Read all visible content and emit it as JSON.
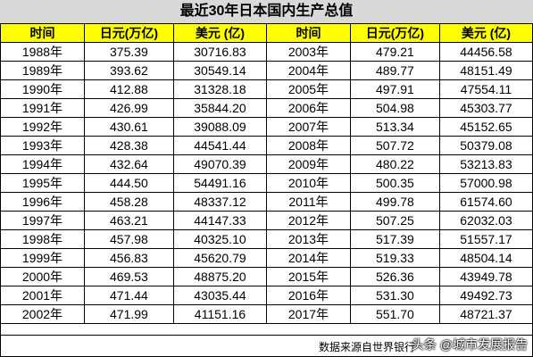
{
  "title": "最近30年日本国内生产总值",
  "headers": [
    "时间",
    "日元(万亿)",
    "美元 (亿)",
    "时间",
    "日元(万亿)",
    "美元 (亿)"
  ],
  "rows": [
    [
      "1988年",
      "375.39",
      "30716.83",
      "2003年",
      "479.21",
      "44456.58"
    ],
    [
      "1989年",
      "393.62",
      "30549.14",
      "2004年",
      "489.77",
      "48151.49"
    ],
    [
      "1990年",
      "412.88",
      "31328.18",
      "2005年",
      "497.91",
      "47554.11"
    ],
    [
      "1991年",
      "426.99",
      "35844.20",
      "2006年",
      "504.98",
      "45303.77"
    ],
    [
      "1992年",
      "430.61",
      "39088.09",
      "2007年",
      "513.34",
      "45152.65"
    ],
    [
      "1993年",
      "428.38",
      "44541.44",
      "2008年",
      "507.72",
      "50379.08"
    ],
    [
      "1994年",
      "432.64",
      "49070.39",
      "2009年",
      "480.22",
      "53213.83"
    ],
    [
      "1995年",
      "444.50",
      "54491.16",
      "2010年",
      "500.35",
      "57000.98"
    ],
    [
      "1996年",
      "458.28",
      "48337.12",
      "2011年",
      "499.78",
      "61574.60"
    ],
    [
      "1997年",
      "463.21",
      "44147.33",
      "2012年",
      "507.25",
      "62032.03"
    ],
    [
      "1998年",
      "457.98",
      "40325.10",
      "2013年",
      "517.39",
      "51557.17"
    ],
    [
      "1999年",
      "456.83",
      "45620.79",
      "2014年",
      "519.33",
      "48504.14"
    ],
    [
      "2000年",
      "469.53",
      "48875.20",
      "2015年",
      "526.36",
      "43949.78"
    ],
    [
      "2001年",
      "471.44",
      "43035.44",
      "2016年",
      "531.30",
      "49492.73"
    ],
    [
      "2002年",
      "471.99",
      "41151.16",
      "2017年",
      "551.70",
      "48721.37"
    ]
  ],
  "footer": {
    "source": "数据来源自世界银行",
    "watermark": "头条 @城市发展报告"
  },
  "colors": {
    "header_bg": "#ffff00",
    "title_bg": "#d9d9d9"
  }
}
